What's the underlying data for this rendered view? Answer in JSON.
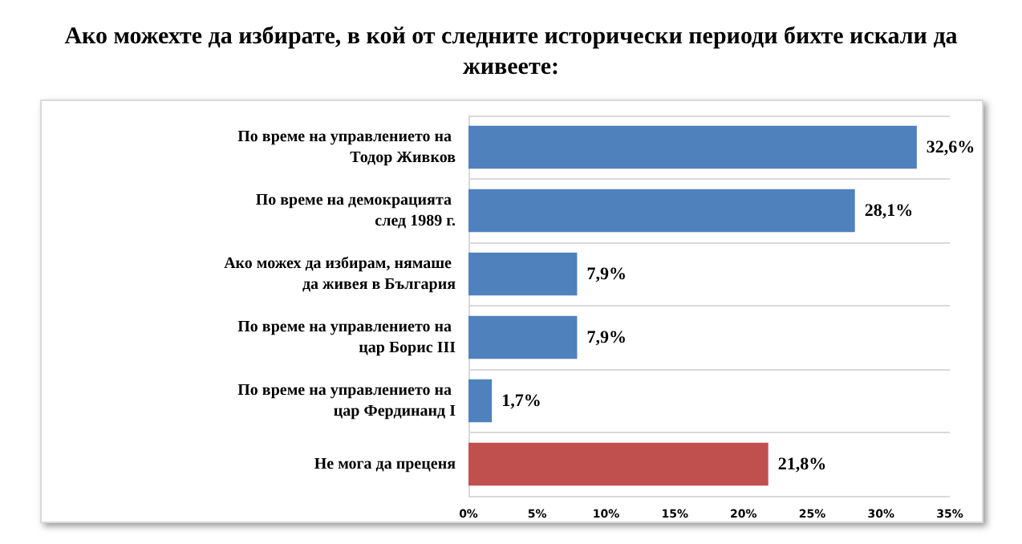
{
  "chart_data": {
    "type": "bar",
    "orientation": "horizontal",
    "title": "Ако можехте да избирате, в кой от следните исторически периоди бихте искали да живеете:",
    "categories": [
      "По време на управлението на Тодор Живков",
      "По време на демокрацията след 1989 г.",
      "Ако можех да избирам, нямаше да живея в България",
      "По време на управлението на цар Борис III",
      "По време на управлението на цар Фердинанд I",
      "Не мога да преценя"
    ],
    "values": [
      32.6,
      28.1,
      7.9,
      7.9,
      1.7,
      21.8
    ],
    "value_labels": [
      "32,6%",
      "28,1%",
      "7,9%",
      "7,9%",
      "1,7%",
      "21,8%"
    ],
    "colors": [
      "#4f81bd",
      "#4f81bd",
      "#4f81bd",
      "#4f81bd",
      "#4f81bd",
      "#c0504d"
    ],
    "xlim": [
      0,
      35
    ],
    "xticks": [
      {
        "value": 0,
        "label": "0%"
      },
      {
        "value": 5,
        "label": "5%"
      },
      {
        "value": 10,
        "label": "10%"
      },
      {
        "value": 15,
        "label": "15%"
      },
      {
        "value": 20,
        "label": "20%"
      },
      {
        "value": 25,
        "label": "25%"
      },
      {
        "value": 30,
        "label": "30%"
      },
      {
        "value": 35,
        "label": "35%"
      }
    ],
    "grid": "y"
  }
}
